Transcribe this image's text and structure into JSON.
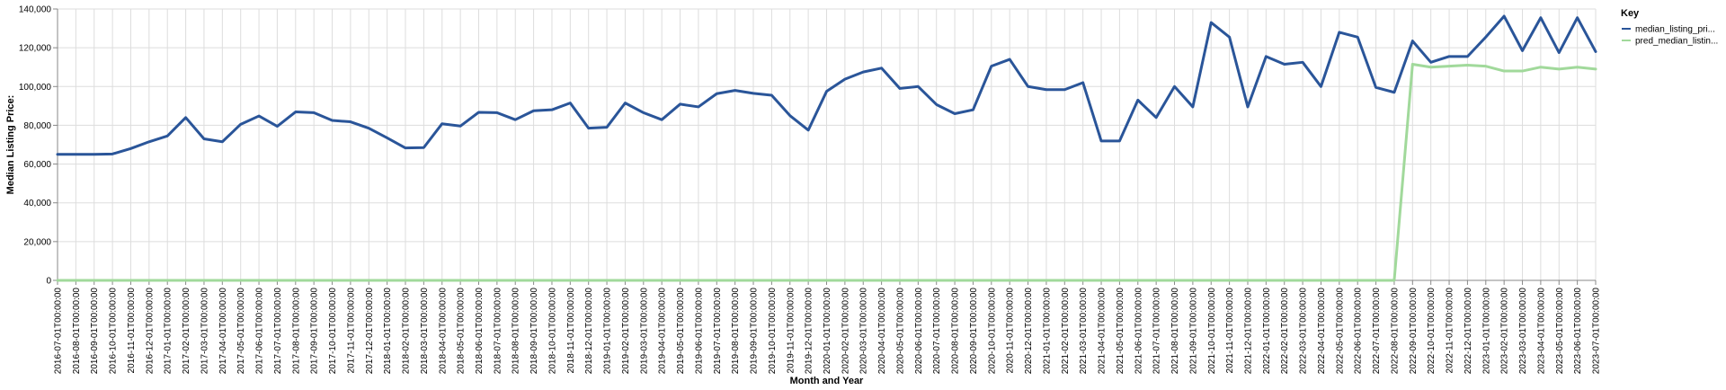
{
  "chart_data": {
    "type": "line",
    "xlabel": "Month and Year",
    "ylabel": "Median Listing Price:",
    "ylim": [
      0,
      140000
    ],
    "yticks": [
      "0",
      "20,000",
      "40,000",
      "60,000",
      "80,000",
      "100,000",
      "120,000",
      "140,000"
    ],
    "grid": true,
    "legend_title": "Key",
    "legend_position": "right",
    "x": [
      "2016-07-01T00:00:00",
      "2016-08-01T00:00:00",
      "2016-09-01T00:00:00",
      "2016-10-01T00:00:00",
      "2016-11-01T00:00:00",
      "2016-12-01T00:00:00",
      "2017-01-01T00:00:00",
      "2017-02-01T00:00:00",
      "2017-03-01T00:00:00",
      "2017-04-01T00:00:00",
      "2017-05-01T00:00:00",
      "2017-06-01T00:00:00",
      "2017-07-01T00:00:00",
      "2017-08-01T00:00:00",
      "2017-09-01T00:00:00",
      "2017-10-01T00:00:00",
      "2017-11-01T00:00:00",
      "2017-12-01T00:00:00",
      "2018-01-01T00:00:00",
      "2018-02-01T00:00:00",
      "2018-03-01T00:00:00",
      "2018-04-01T00:00:00",
      "2018-05-01T00:00:00",
      "2018-06-01T00:00:00",
      "2018-07-01T00:00:00",
      "2018-08-01T00:00:00",
      "2018-09-01T00:00:00",
      "2018-10-01T00:00:00",
      "2018-11-01T00:00:00",
      "2018-12-01T00:00:00",
      "2019-01-01T00:00:00",
      "2019-02-01T00:00:00",
      "2019-03-01T00:00:00",
      "2019-04-01T00:00:00",
      "2019-05-01T00:00:00",
      "2019-06-01T00:00:00",
      "2019-07-01T00:00:00",
      "2019-08-01T00:00:00",
      "2019-09-01T00:00:00",
      "2019-10-01T00:00:00",
      "2019-11-01T00:00:00",
      "2019-12-01T00:00:00",
      "2020-01-01T00:00:00",
      "2020-02-01T00:00:00",
      "2020-03-01T00:00:00",
      "2020-04-01T00:00:00",
      "2020-05-01T00:00:00",
      "2020-06-01T00:00:00",
      "2020-07-01T00:00:00",
      "2020-08-01T00:00:00",
      "2020-09-01T00:00:00",
      "2020-10-01T00:00:00",
      "2020-11-01T00:00:00",
      "2020-12-01T00:00:00",
      "2021-01-01T00:00:00",
      "2021-02-01T00:00:00",
      "2021-03-01T00:00:00",
      "2021-04-01T00:00:00",
      "2021-05-01T00:00:00",
      "2021-06-01T00:00:00",
      "2021-07-01T00:00:00",
      "2021-08-01T00:00:00",
      "2021-09-01T00:00:00",
      "2021-10-01T00:00:00",
      "2021-11-01T00:00:00",
      "2021-12-01T00:00:00",
      "2022-01-01T00:00:00",
      "2022-02-01T00:00:00",
      "2022-03-01T00:00:00",
      "2022-04-01T00:00:00",
      "2022-05-01T00:00:00",
      "2022-06-01T00:00:00",
      "2022-07-01T00:00:00",
      "2022-08-01T00:00:00",
      "2022-09-01T00:00:00",
      "2022-10-01T00:00:00",
      "2022-11-01T00:00:00",
      "2022-12-01T00:00:00",
      "2023-01-01T00:00:00",
      "2023-02-01T00:00:00",
      "2023-03-01T00:00:00",
      "2023-04-01T00:00:00",
      "2023-05-01T00:00:00",
      "2023-06-01T00:00:00",
      "2023-07-01T00:00:00"
    ],
    "series": [
      {
        "name": "median_listing_pri...",
        "color": "#2a5599",
        "values": [
          65000,
          65000,
          65000,
          65200,
          68000,
          71500,
          74500,
          84000,
          73000,
          71500,
          80500,
          84800,
          79500,
          86900,
          86500,
          82500,
          81800,
          78500,
          73500,
          68300,
          68500,
          80800,
          79600,
          86700,
          86500,
          82900,
          87500,
          88000,
          91500,
          78500,
          79000,
          91500,
          86500,
          82900,
          90900,
          89500,
          96300,
          98000,
          96500,
          95500,
          85000,
          77500,
          97500,
          103800,
          107500,
          109500,
          99000,
          100000,
          90700,
          86000,
          88000,
          110500,
          114000,
          100000,
          98400,
          98400,
          102000,
          71900,
          71900,
          93000,
          84000,
          100000,
          89500,
          133000,
          125500,
          89500,
          115500,
          111500,
          112500,
          100000,
          128000,
          125500,
          99500,
          97000,
          123500,
          112500,
          115500,
          115500,
          125500,
          136300,
          118500,
          135500,
          117500,
          135500,
          118000
        ]
      },
      {
        "name": "pred_median_listin...",
        "color": "#a1d99b",
        "values": [
          0,
          0,
          0,
          0,
          0,
          0,
          0,
          0,
          0,
          0,
          0,
          0,
          0,
          0,
          0,
          0,
          0,
          0,
          0,
          0,
          0,
          0,
          0,
          0,
          0,
          0,
          0,
          0,
          0,
          0,
          0,
          0,
          0,
          0,
          0,
          0,
          0,
          0,
          0,
          0,
          0,
          0,
          0,
          0,
          0,
          0,
          0,
          0,
          0,
          0,
          0,
          0,
          0,
          0,
          0,
          0,
          0,
          0,
          0,
          0,
          0,
          0,
          0,
          0,
          0,
          0,
          0,
          0,
          0,
          0,
          0,
          0,
          0,
          0,
          111500,
          110000,
          110500,
          111000,
          110500,
          108000,
          108000,
          110000,
          109000,
          110000,
          109000
        ]
      }
    ]
  }
}
